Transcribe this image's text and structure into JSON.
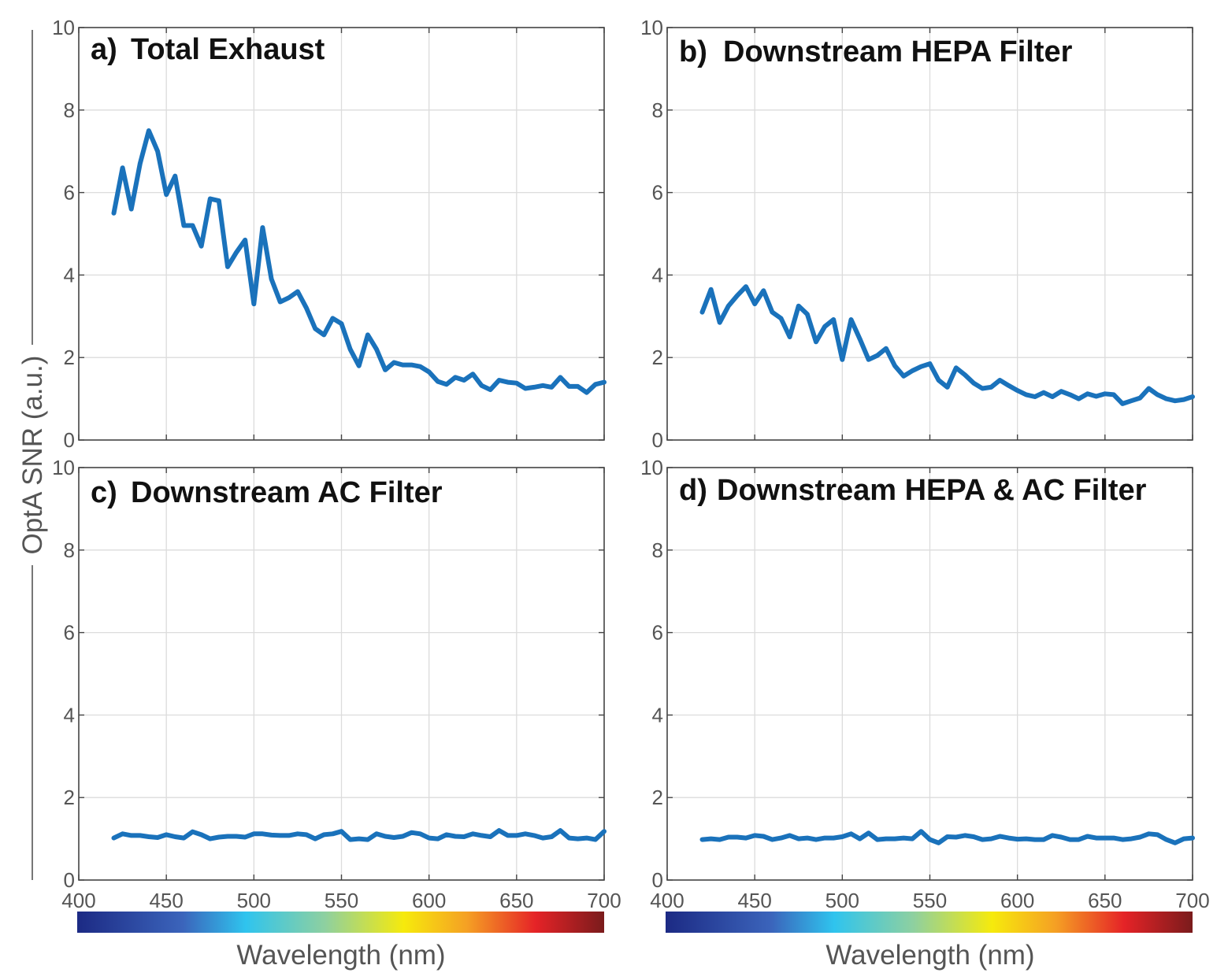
{
  "colors": {
    "series": "#1a72bb",
    "grid": "#dcdcdc",
    "axis": "#444444"
  },
  "ylabel": "OptA SNR (a.u.)",
  "chart_data": [
    {
      "type": "line",
      "title": "Total Exhaust",
      "panel_letter": "a)",
      "xlabel": "",
      "ylabel": "OptA SNR (a.u.)",
      "xlim": [
        400,
        700
      ],
      "ylim": [
        0,
        10
      ],
      "xticks": [
        "400",
        "450",
        "500",
        "550",
        "600",
        "650",
        "700"
      ],
      "yticks": [
        "0",
        "2",
        "4",
        "6",
        "8",
        "10"
      ],
      "grid": true,
      "x": [
        420,
        425,
        430,
        435,
        440,
        445,
        450,
        455,
        460,
        465,
        470,
        475,
        480,
        485,
        490,
        495,
        500,
        505,
        510,
        515,
        520,
        525,
        530,
        535,
        540,
        545,
        550,
        555,
        560,
        565,
        570,
        575,
        580,
        585,
        590,
        595,
        600,
        605,
        610,
        615,
        620,
        625,
        630,
        635,
        640,
        645,
        650,
        655,
        660,
        665,
        670,
        675,
        680,
        685,
        690,
        695,
        700
      ],
      "y": [
        5.5,
        6.6,
        5.6,
        6.7,
        7.5,
        7.0,
        5.95,
        6.4,
        5.2,
        5.2,
        4.7,
        5.85,
        5.8,
        4.2,
        4.55,
        4.85,
        3.3,
        5.15,
        3.9,
        3.35,
        3.45,
        3.6,
        3.2,
        2.7,
        2.55,
        2.95,
        2.82,
        2.2,
        1.8,
        2.55,
        2.2,
        1.7,
        1.88,
        1.82,
        1.82,
        1.78,
        1.65,
        1.42,
        1.35,
        1.52,
        1.45,
        1.6,
        1.32,
        1.22,
        1.45,
        1.4,
        1.38,
        1.25,
        1.28,
        1.32,
        1.28,
        1.52,
        1.3,
        1.3,
        1.15,
        1.35,
        1.4
      ]
    },
    {
      "type": "line",
      "title": "Downstream HEPA Filter",
      "panel_letter": "b)",
      "xlabel": "",
      "ylabel": "",
      "xlim": [
        400,
        700
      ],
      "ylim": [
        0,
        10
      ],
      "xticks": [
        "400",
        "450",
        "500",
        "550",
        "600",
        "650",
        "700"
      ],
      "yticks": [
        "0",
        "2",
        "4",
        "6",
        "8",
        "10"
      ],
      "grid": true,
      "x": [
        420,
        425,
        430,
        435,
        440,
        445,
        450,
        455,
        460,
        465,
        470,
        475,
        480,
        485,
        490,
        495,
        500,
        505,
        510,
        515,
        520,
        525,
        530,
        535,
        540,
        545,
        550,
        555,
        560,
        565,
        570,
        575,
        580,
        585,
        590,
        595,
        600,
        605,
        610,
        615,
        620,
        625,
        630,
        635,
        640,
        645,
        650,
        655,
        660,
        665,
        670,
        675,
        680,
        685,
        690,
        695,
        700
      ],
      "y": [
        3.1,
        3.65,
        2.85,
        3.25,
        3.5,
        3.72,
        3.3,
        3.62,
        3.1,
        2.95,
        2.5,
        3.25,
        3.05,
        2.38,
        2.75,
        2.92,
        1.95,
        2.92,
        2.45,
        1.95,
        2.05,
        2.22,
        1.8,
        1.55,
        1.68,
        1.78,
        1.85,
        1.45,
        1.28,
        1.75,
        1.58,
        1.38,
        1.25,
        1.28,
        1.45,
        1.32,
        1.2,
        1.1,
        1.05,
        1.15,
        1.05,
        1.18,
        1.1,
        1.0,
        1.12,
        1.06,
        1.12,
        1.1,
        0.88,
        0.95,
        1.02,
        1.25,
        1.1,
        1.0,
        0.95,
        0.98,
        1.05
      ]
    },
    {
      "type": "line",
      "title": "Downstream AC Filter",
      "panel_letter": "c)",
      "xlabel": "Wavelength (nm)",
      "ylabel": "",
      "xlim": [
        400,
        700
      ],
      "ylim": [
        0,
        10
      ],
      "xticks": [
        "400",
        "450",
        "500",
        "550",
        "600",
        "650",
        "700"
      ],
      "yticks": [
        "0",
        "2",
        "4",
        "6",
        "8",
        "10"
      ],
      "grid": true,
      "x": [
        420,
        425,
        430,
        435,
        440,
        445,
        450,
        455,
        460,
        465,
        470,
        475,
        480,
        485,
        490,
        495,
        500,
        505,
        510,
        515,
        520,
        525,
        530,
        535,
        540,
        545,
        550,
        555,
        560,
        565,
        570,
        575,
        580,
        585,
        590,
        595,
        600,
        605,
        610,
        615,
        620,
        625,
        630,
        635,
        640,
        645,
        650,
        655,
        660,
        665,
        670,
        675,
        680,
        685,
        690,
        695,
        700
      ],
      "y": [
        1.02,
        1.12,
        1.08,
        1.08,
        1.05,
        1.03,
        1.1,
        1.05,
        1.02,
        1.17,
        1.1,
        1.0,
        1.04,
        1.06,
        1.06,
        1.04,
        1.12,
        1.12,
        1.09,
        1.08,
        1.08,
        1.12,
        1.1,
        1.0,
        1.1,
        1.12,
        1.18,
        0.98,
        1.0,
        0.98,
        1.12,
        1.06,
        1.03,
        1.06,
        1.15,
        1.12,
        1.02,
        1.0,
        1.1,
        1.06,
        1.05,
        1.12,
        1.08,
        1.05,
        1.2,
        1.08,
        1.08,
        1.12,
        1.08,
        1.02,
        1.05,
        1.2,
        1.02,
        1.0,
        1.02,
        0.98,
        1.18
      ]
    },
    {
      "type": "line",
      "title": "Downstream HEPA & AC Filter",
      "panel_letter": "d)",
      "xlabel": "Wavelength (nm)",
      "ylabel": "",
      "xlim": [
        400,
        700
      ],
      "ylim": [
        0,
        10
      ],
      "xticks": [
        "400",
        "450",
        "500",
        "550",
        "600",
        "650",
        "700"
      ],
      "yticks": [
        "0",
        "2",
        "4",
        "6",
        "8",
        "10"
      ],
      "grid": true,
      "x": [
        420,
        425,
        430,
        435,
        440,
        445,
        450,
        455,
        460,
        465,
        470,
        475,
        480,
        485,
        490,
        495,
        500,
        505,
        510,
        515,
        520,
        525,
        530,
        535,
        540,
        545,
        550,
        555,
        560,
        565,
        570,
        575,
        580,
        585,
        590,
        595,
        600,
        605,
        610,
        615,
        620,
        625,
        630,
        635,
        640,
        645,
        650,
        655,
        660,
        665,
        670,
        675,
        680,
        685,
        690,
        695,
        700
      ],
      "y": [
        0.98,
        1.0,
        0.98,
        1.04,
        1.04,
        1.02,
        1.08,
        1.06,
        0.98,
        1.02,
        1.08,
        1.0,
        1.02,
        0.98,
        1.02,
        1.02,
        1.05,
        1.12,
        1.0,
        1.14,
        0.98,
        1.0,
        1.0,
        1.02,
        1.0,
        1.18,
        0.98,
        0.9,
        1.05,
        1.04,
        1.08,
        1.05,
        0.98,
        1.0,
        1.06,
        1.02,
        0.99,
        1.0,
        0.98,
        0.98,
        1.08,
        1.04,
        0.98,
        0.98,
        1.06,
        1.02,
        1.02,
        1.02,
        0.98,
        1.0,
        1.04,
        1.12,
        1.1,
        0.98,
        0.9,
        1.0,
        1.02
      ]
    }
  ]
}
